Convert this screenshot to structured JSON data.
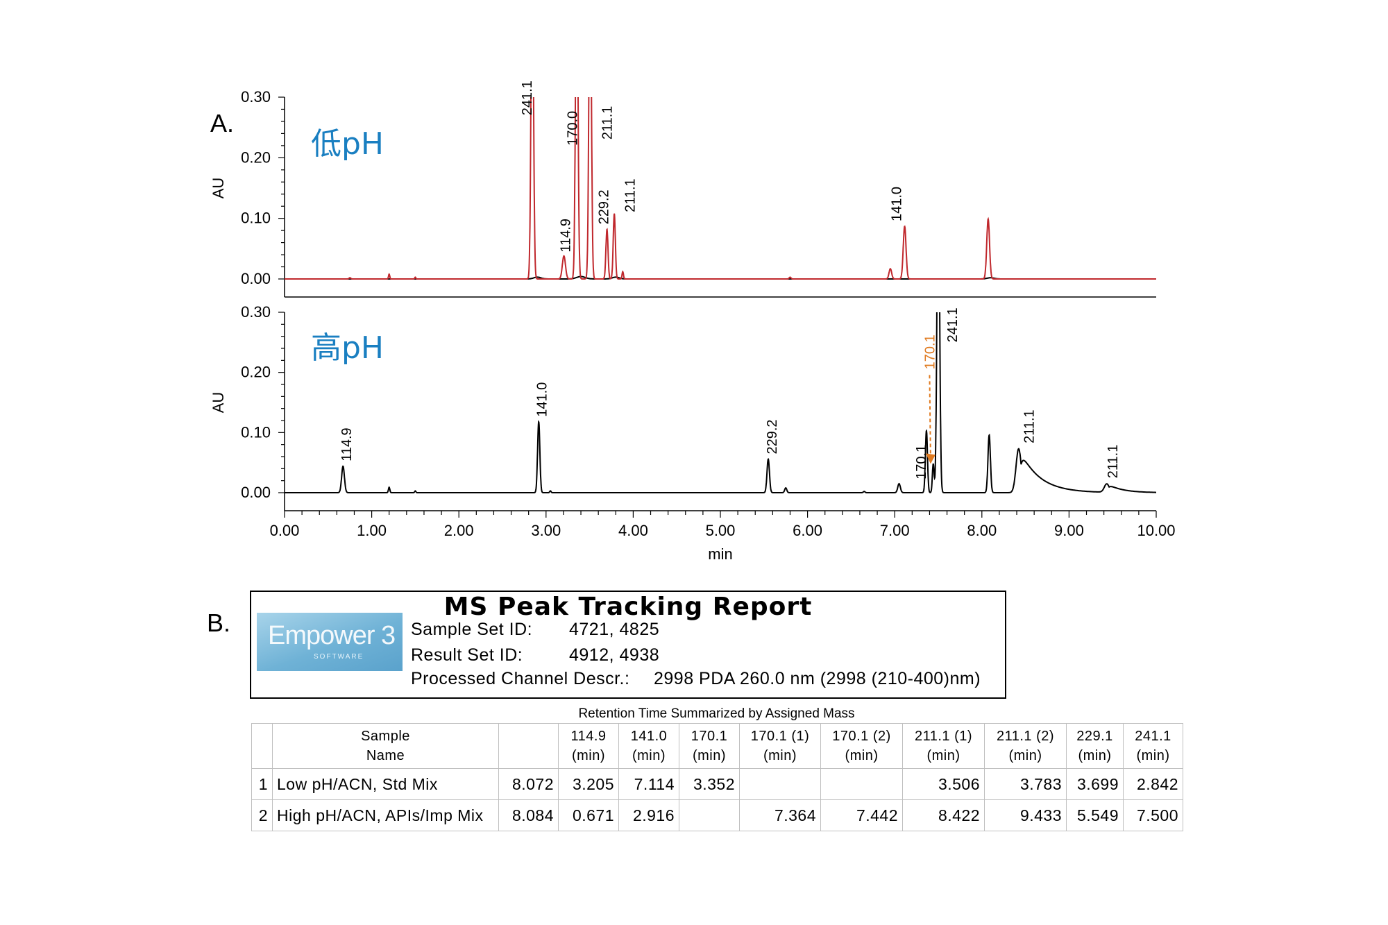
{
  "chart_data": [
    {
      "type": "line",
      "panel_letter": "A.",
      "inset_label": "低pH",
      "xlabel": "",
      "ylabel": "AU",
      "xlim": [
        0,
        10
      ],
      "ylim": [
        0,
        0.3
      ],
      "xticks": [],
      "yticks": [
        "0.00",
        "0.10",
        "0.20",
        "0.30"
      ],
      "series": [
        {
          "color": "#c0282d",
          "peaks": [
            {
              "t": 0.75,
              "h": 0.002,
              "w": 0.01
            },
            {
              "t": 1.2,
              "h": 0.008,
              "w": 0.007
            },
            {
              "t": 1.5,
              "h": 0.003,
              "w": 0.006
            },
            {
              "t": 2.842,
              "h": 0.55,
              "w": 0.014
            },
            {
              "t": 3.205,
              "h": 0.038,
              "w": 0.018
            },
            {
              "t": 3.352,
              "h": 0.55,
              "w": 0.014
            },
            {
              "t": 3.506,
              "h": 0.55,
              "w": 0.014
            },
            {
              "t": 3.699,
              "h": 0.082,
              "w": 0.012
            },
            {
              "t": 3.783,
              "h": 0.108,
              "w": 0.012
            },
            {
              "t": 3.88,
              "h": 0.012,
              "w": 0.008
            },
            {
              "t": 5.8,
              "h": 0.003,
              "w": 0.01
            },
            {
              "t": 6.95,
              "h": 0.017,
              "w": 0.015
            },
            {
              "t": 7.114,
              "h": 0.087,
              "w": 0.016
            },
            {
              "t": 8.072,
              "h": 0.099,
              "w": 0.016
            }
          ]
        },
        {
          "color": "#000000",
          "peaks": [
            {
              "t": 2.9,
              "h": 0.003,
              "w": 0.04
            },
            {
              "t": 3.4,
              "h": 0.004,
              "w": 0.05
            },
            {
              "t": 3.8,
              "h": 0.003,
              "w": 0.04
            },
            {
              "t": 8.1,
              "h": 0.002,
              "w": 0.04
            }
          ]
        }
      ],
      "peak_labels": [
        {
          "text": "241.1",
          "t": 2.78,
          "y": 0.27
        },
        {
          "text": "114.9",
          "t": 3.22,
          "y": 0.044
        },
        {
          "text": "170.0",
          "t": 3.3,
          "y": 0.22
        },
        {
          "text": "211.1",
          "t": 3.7,
          "y": 0.23
        },
        {
          "text": "229.2",
          "t": 3.66,
          "y": 0.09
        },
        {
          "text": "211.1",
          "t": 3.96,
          "y": 0.11
        },
        {
          "text": "141.0",
          "t": 7.02,
          "y": 0.095
        }
      ]
    },
    {
      "type": "line",
      "inset_label": "高pH",
      "xlabel": "min",
      "ylabel": "AU",
      "xlim": [
        0,
        10
      ],
      "ylim": [
        0,
        0.3
      ],
      "xticks": [
        "0.00",
        "1.00",
        "2.00",
        "3.00",
        "4.00",
        "5.00",
        "6.00",
        "7.00",
        "8.00",
        "9.00",
        "10.00"
      ],
      "yticks": [
        "0.00",
        "0.10",
        "0.20",
        "0.30"
      ],
      "series": [
        {
          "color": "#000000",
          "peaks": [
            {
              "t": 0.671,
              "h": 0.044,
              "w": 0.016
            },
            {
              "t": 1.2,
              "h": 0.009,
              "w": 0.008
            },
            {
              "t": 1.5,
              "h": 0.003,
              "w": 0.007
            },
            {
              "t": 2.916,
              "h": 0.118,
              "w": 0.013
            },
            {
              "t": 3.05,
              "h": 0.003,
              "w": 0.008
            },
            {
              "t": 5.549,
              "h": 0.056,
              "w": 0.014
            },
            {
              "t": 5.75,
              "h": 0.008,
              "w": 0.012
            },
            {
              "t": 6.65,
              "h": 0.002,
              "w": 0.01
            },
            {
              "t": 7.05,
              "h": 0.015,
              "w": 0.015
            },
            {
              "t": 7.364,
              "h": 0.103,
              "w": 0.012
            },
            {
              "t": 7.442,
              "h": 0.048,
              "w": 0.01
            },
            {
              "t": 7.5,
              "h": 0.55,
              "w": 0.015
            },
            {
              "t": 8.084,
              "h": 0.096,
              "w": 0.014
            },
            {
              "t": 8.422,
              "h": 0.073,
              "w": 0.03,
              "tail": 0.22
            },
            {
              "t": 9.433,
              "h": 0.014,
              "w": 0.028,
              "tail": 0.16
            }
          ]
        }
      ],
      "peak_labels": [
        {
          "text": "114.9",
          "t": 0.71,
          "y": 0.052
        },
        {
          "text": "141.0",
          "t": 2.95,
          "y": 0.126
        },
        {
          "text": "229.2",
          "t": 5.59,
          "y": 0.064
        },
        {
          "text": "170.1",
          "t": 7.3,
          "y": 0.022
        },
        {
          "text": "241.1",
          "t": 7.66,
          "y": 0.25
        },
        {
          "text": "211.1",
          "t": 8.54,
          "y": 0.082
        },
        {
          "text": "211.1",
          "t": 9.5,
          "y": 0.024
        }
      ],
      "annotation": {
        "text": "170.1",
        "color": "#e07a1f",
        "t": 7.4,
        "y": 0.205,
        "arrow_to_t": 7.364,
        "arrow_to_y": 0.055
      }
    }
  ],
  "panel_b": {
    "letter": "B.",
    "report": {
      "title": "MS Peak Tracking Report",
      "logo_text": "Empower 3",
      "logo_sub": "SOFTWARE",
      "fields": [
        {
          "label": "Sample Set ID:",
          "value": "4721, 4825"
        },
        {
          "label": "Result Set ID:",
          "value": "4912, 4938"
        },
        {
          "label": "Processed Channel Descr.:",
          "value": "2998 PDA 260.0 nm (2998 (210-400)nm)"
        }
      ]
    },
    "table": {
      "caption": "Retention Time Summarized by Assigned Mass",
      "headers": [
        {
          "line1": "",
          "line2": ""
        },
        {
          "line1": "Sample",
          "line2": "Name"
        },
        {
          "line1": "",
          "line2": ""
        },
        {
          "line1": "114.9",
          "line2": "(min)"
        },
        {
          "line1": "141.0",
          "line2": "(min)"
        },
        {
          "line1": "170.1",
          "line2": "(min)"
        },
        {
          "line1": "170.1 (1)",
          "line2": "(min)"
        },
        {
          "line1": "170.1 (2)",
          "line2": "(min)"
        },
        {
          "line1": "211.1 (1)",
          "line2": "(min)"
        },
        {
          "line1": "211.1 (2)",
          "line2": "(min)"
        },
        {
          "line1": "229.1",
          "line2": "(min)"
        },
        {
          "line1": "241.1",
          "line2": "(min)"
        }
      ],
      "rows": [
        [
          "1",
          "Low pH/ACN, Std Mix",
          "8.072",
          "3.205",
          "7.114",
          "3.352",
          "",
          "",
          "3.506",
          "3.783",
          "3.699",
          "2.842"
        ],
        [
          "2",
          "High pH/ACN, APIs/Imp Mix",
          "8.084",
          "0.671",
          "2.916",
          "",
          "7.364",
          "7.442",
          "8.422",
          "9.433",
          "5.549",
          "7.500"
        ]
      ]
    }
  }
}
